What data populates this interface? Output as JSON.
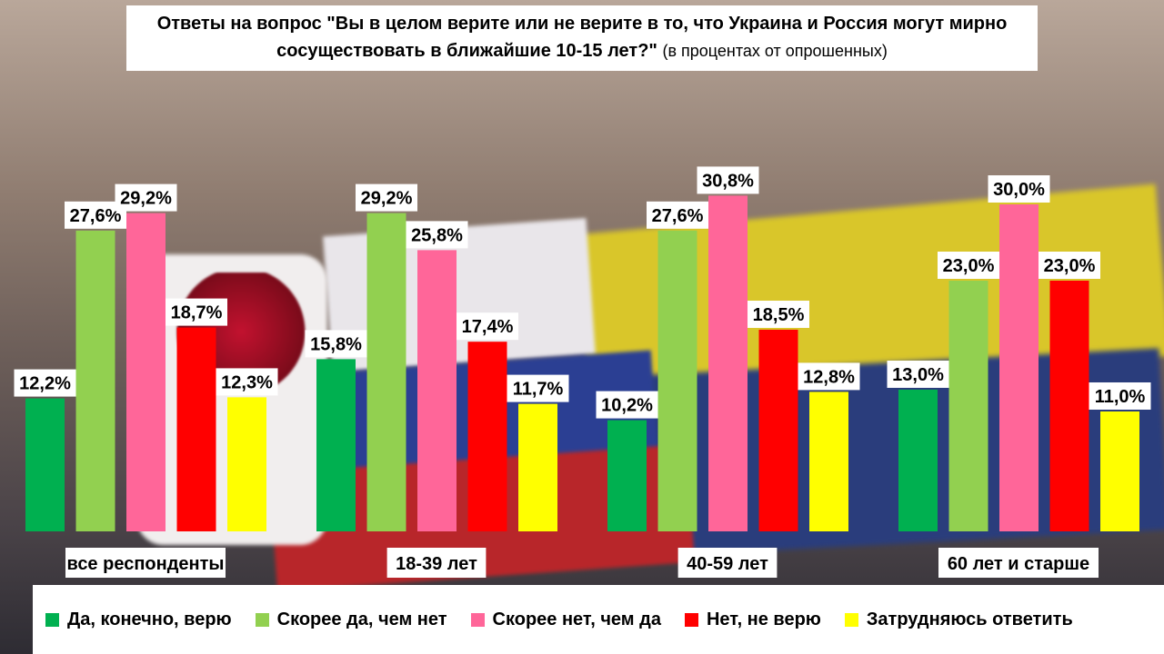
{
  "title": {
    "main": "Ответы на вопрос \"Вы в целом верите или не верите в то, что Украина и Россия могут мирно сосуществовать в ближайшие 10-15 лет?\"",
    "subtitle": "(в процентах от опрошенных)"
  },
  "chart_data": {
    "type": "bar",
    "title": "Ответы на вопрос \"Вы в целом верите или не верите в то, что Украина и Россия могут мирно сосуществовать в ближайшие 10-15 лет?\"",
    "subtitle": "(в процентах от опрошенных)",
    "categories": [
      "все респонденты",
      "18-39 лет",
      "40-59 лет",
      "60 лет и старше"
    ],
    "ylim": [
      0,
      32
    ],
    "grid": false,
    "legend_position": "bottom",
    "series": [
      {
        "name": "Да, конечно, верю",
        "color": "#00b050",
        "values": [
          12.2,
          15.8,
          10.2,
          13.0
        ],
        "labels": [
          "12,2%",
          "15,8%",
          "10,2%",
          "13,0%"
        ]
      },
      {
        "name": "Скорее да, чем нет",
        "color": "#92d050",
        "values": [
          27.6,
          29.2,
          27.6,
          23.0
        ],
        "labels": [
          "27,6%",
          "29,2%",
          "27,6%",
          "23,0%"
        ]
      },
      {
        "name": "Скорее нет, чем да",
        "color": "#ff6699",
        "values": [
          29.2,
          25.8,
          30.8,
          30.0
        ],
        "labels": [
          "29,2%",
          "25,8%",
          "30,8%",
          "30,0%"
        ]
      },
      {
        "name": "Нет, не верю",
        "color": "#ff0000",
        "values": [
          18.7,
          17.4,
          18.5,
          23.0
        ],
        "labels": [
          "18,7%",
          "17,4%",
          "18,5%",
          "23,0%"
        ]
      },
      {
        "name": "Затрудняюсь ответить",
        "color": "#ffff00",
        "values": [
          12.3,
          11.7,
          12.8,
          11.0
        ],
        "labels": [
          "12,3%",
          "11,7%",
          "12,8%",
          "11,0%"
        ]
      }
    ]
  }
}
